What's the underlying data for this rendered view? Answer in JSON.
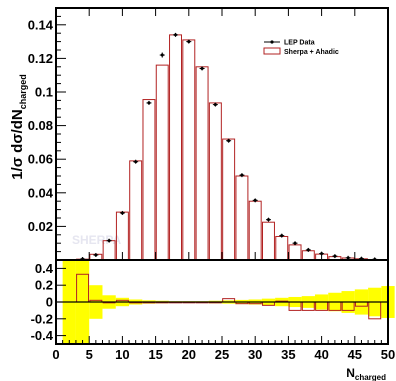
{
  "chart_data": [
    {
      "type": "bar",
      "panel": "main",
      "ylabel_main": "1/σ dσ/dN",
      "ylabel_sub": "charged",
      "watermark": "SHERPA",
      "xlim": [
        0,
        50
      ],
      "ylim": [
        0,
        0.15
      ],
      "yticks": [
        0.02,
        0.04,
        0.06,
        0.08,
        0.1,
        0.12,
        0.14
      ],
      "ytick_labels": [
        "0.02",
        "0.04",
        "0.06",
        "0.08",
        "0.1",
        "0.12",
        "0.14"
      ],
      "legend_position": "top-right",
      "colors": {
        "data": "#000000",
        "mc": "#b22222"
      },
      "series": [
        {
          "name": "LEP Data",
          "style": "points",
          "x": [
            4,
            6,
            8,
            10,
            12,
            14,
            16,
            18,
            20,
            22,
            24,
            26,
            28,
            30,
            32,
            34,
            36,
            38,
            40,
            42,
            44,
            46,
            48
          ],
          "y": [
            0.0006,
            0.003,
            0.0115,
            0.028,
            0.0585,
            0.0935,
            0.122,
            0.134,
            0.13,
            0.114,
            0.0925,
            0.071,
            0.0505,
            0.0355,
            0.024,
            0.0145,
            0.01,
            0.006,
            0.0038,
            0.0023,
            0.0013,
            0.0008,
            0.0004
          ],
          "yerr": [
            0.0002,
            0.0003,
            0.0005,
            0.0008,
            0.0012,
            0.0012,
            0.0015,
            0.001,
            0.001,
            0.0009,
            0.0008,
            0.0007,
            0.0006,
            0.0005,
            0.0004,
            0.0003,
            0.0003,
            0.0002,
            0.0002,
            0.0002,
            0.0001,
            0.0001,
            0.0001
          ]
        },
        {
          "name": "Sherpa + Ahadic",
          "style": "histogram",
          "x": [
            4,
            6,
            8,
            10,
            12,
            14,
            16,
            18,
            20,
            22,
            24,
            26,
            28,
            30,
            32,
            34,
            36,
            38,
            40,
            42,
            44,
            46,
            48
          ],
          "y": [
            0.0005,
            0.0034,
            0.0115,
            0.0285,
            0.059,
            0.0955,
            0.116,
            0.134,
            0.131,
            0.115,
            0.0935,
            0.072,
            0.05,
            0.035,
            0.0225,
            0.014,
            0.009,
            0.0055,
            0.0035,
            0.002,
            0.0012,
            0.0007,
            0.0003
          ]
        }
      ]
    },
    {
      "type": "bar",
      "panel": "ratio",
      "xlabel_main": "N",
      "xlabel_sub": "charged",
      "xlim": [
        0,
        50
      ],
      "ylim": [
        -0.5,
        0.5
      ],
      "xticks": [
        0,
        5,
        10,
        15,
        20,
        25,
        30,
        35,
        40,
        45,
        50
      ],
      "xtick_labels": [
        "0",
        "5",
        "10",
        "15",
        "20",
        "25",
        "30",
        "35",
        "40",
        "45",
        "50"
      ],
      "yticks": [
        -0.4,
        -0.2,
        0,
        0.2,
        0.4
      ],
      "ytick_labels": [
        "-0.4",
        "-0.2",
        "0",
        "0.2",
        "0.4"
      ],
      "colors": {
        "band": "#ffff00",
        "mc": "#b22222"
      },
      "uncertainty_band": {
        "x": [
          2,
          4,
          6,
          8,
          10,
          12,
          14,
          16,
          18,
          20,
          22,
          24,
          26,
          28,
          30,
          32,
          34,
          36,
          38,
          40,
          42,
          44,
          46,
          48,
          50
        ],
        "half_width": [
          0.5,
          0.5,
          0.2,
          0.08,
          0.05,
          0.03,
          0.02,
          0.015,
          0.01,
          0.01,
          0.01,
          0.015,
          0.02,
          0.025,
          0.03,
          0.04,
          0.05,
          0.06,
          0.07,
          0.09,
          0.11,
          0.13,
          0.15,
          0.17,
          0.19
        ]
      },
      "series": [
        {
          "name": "Sherpa + Ahadic",
          "style": "histogram",
          "x": [
            4,
            6,
            8,
            10,
            12,
            14,
            16,
            18,
            20,
            22,
            24,
            26,
            28,
            30,
            32,
            34,
            36,
            38,
            40,
            42,
            44,
            46,
            48
          ],
          "y": [
            0.33,
            0.02,
            -0.01,
            0.02,
            -0.01,
            -0.01,
            -0.01,
            -0.01,
            -0.01,
            -0.01,
            -0.01,
            0.04,
            -0.02,
            -0.02,
            -0.04,
            0.01,
            -0.1,
            -0.1,
            -0.1,
            -0.1,
            -0.1,
            -0.05,
            -0.2
          ]
        }
      ]
    }
  ]
}
